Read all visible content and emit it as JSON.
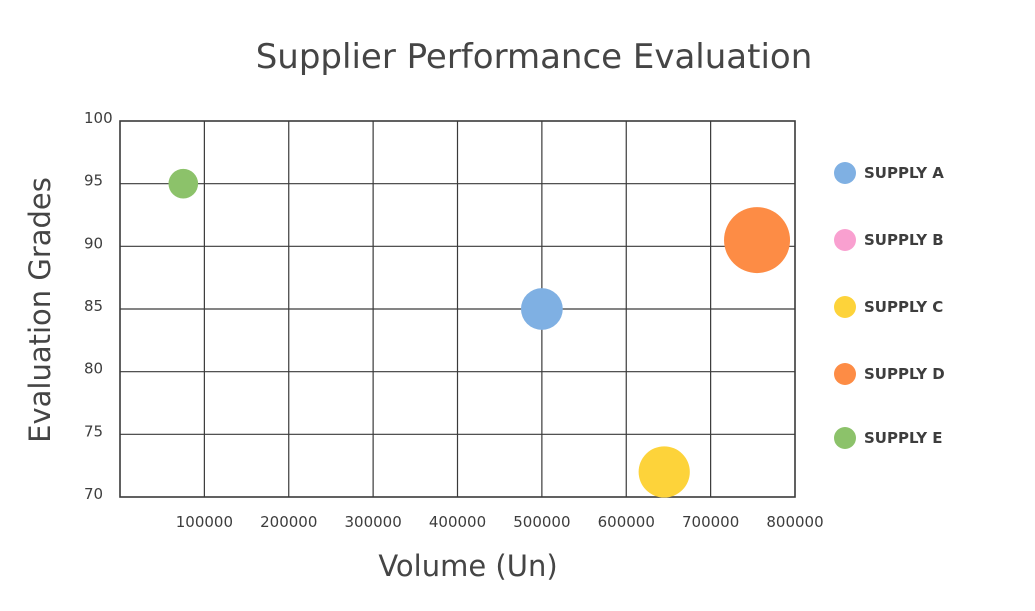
{
  "chart_data": {
    "type": "scatter",
    "variant": "bubble",
    "title": "Supplier Performance Evaluation",
    "xlabel": "Volume (Un)",
    "ylabel": "Evaluation Grades",
    "xlim": [
      0,
      800000
    ],
    "ylim": [
      70,
      100
    ],
    "x_ticks": [
      100000,
      200000,
      300000,
      400000,
      500000,
      600000,
      700000,
      800000
    ],
    "y_ticks": [
      70,
      75,
      80,
      85,
      90,
      95,
      100
    ],
    "x_tick_labels": [
      "100000",
      "200000",
      "300000",
      "400000",
      "500000",
      "600000",
      "700000",
      "800000"
    ],
    "y_tick_labels": [
      "70",
      "75",
      "80",
      "85",
      "90",
      "95",
      "100"
    ],
    "grid": true,
    "legend_position": "right",
    "series": [
      {
        "name": "SUPPLY A",
        "color": "#7fb0e3",
        "x": 500000,
        "y": 85,
        "size": 2
      },
      {
        "name": "SUPPLY B",
        "color": "#f9a0d0",
        "x": null,
        "y": null,
        "size": null
      },
      {
        "name": "SUPPLY C",
        "color": "#fdd33a",
        "x": 645000,
        "y": 72,
        "size": 3
      },
      {
        "name": "SUPPLY D",
        "color": "#fd8c45",
        "x": 755000,
        "y": 90.5,
        "size": 5
      },
      {
        "name": "SUPPLY E",
        "color": "#8cc26a",
        "x": 75000,
        "y": 95,
        "size": 1
      }
    ]
  }
}
